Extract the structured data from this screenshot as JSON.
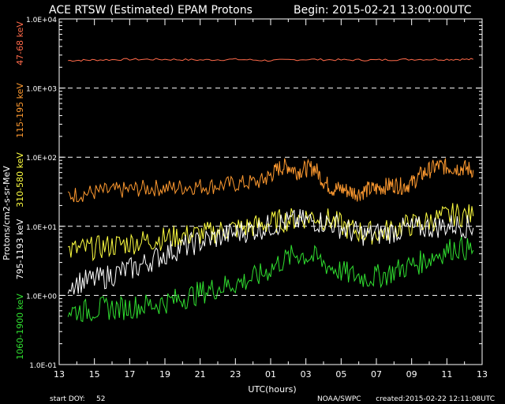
{
  "chart_data": {
    "type": "line",
    "title": "ACE RTSW (Estimated) EPAM Protons",
    "begin": "Begin: 2015-02-21 13:00:00UTC",
    "ylabel": "Protons/cm2-s-sr-MeV",
    "xlabel": "UTC(hours)",
    "yscale": "log",
    "ylim": [
      0.1,
      10000
    ],
    "xlim": [
      13,
      37
    ],
    "grid": "dashed horizontal at decades",
    "y_ticks": [
      "1.0E-01",
      "1.0E+00",
      "1.0E+01",
      "1.0E+02",
      "1.0E+03",
      "1.0E+04"
    ],
    "x_ticks": [
      "13",
      "15",
      "17",
      "19",
      "21",
      "23",
      "01",
      "03",
      "05",
      "07",
      "09",
      "11",
      "13"
    ],
    "series": [
      {
        "name": "47-68 keV",
        "color": "#ff6a4a",
        "x": [
          13.5,
          15,
          17,
          19,
          21,
          23,
          25,
          27,
          29,
          31,
          33,
          35,
          36.5
        ],
        "values": [
          2500,
          2550,
          2600,
          2600,
          2550,
          2600,
          2500,
          2600,
          2550,
          2550,
          2600,
          2600,
          2600
        ]
      },
      {
        "name": "115-195 keV",
        "color": "#ff9a30",
        "x": [
          13.5,
          14.5,
          15.5,
          16.5,
          17.5,
          18.5,
          19.5,
          20.5,
          21.5,
          22.5,
          23.5,
          24.5,
          25,
          25.5,
          26,
          26.5,
          27,
          27.5,
          28,
          28.5,
          29,
          29.5,
          30,
          30.5,
          31,
          31.5,
          32,
          32.5,
          33,
          33.5,
          34,
          34.5,
          35,
          35.5,
          36,
          36.5
        ],
        "values": [
          28,
          30,
          32,
          33,
          35,
          36,
          36,
          38,
          38,
          40,
          42,
          45,
          55,
          70,
          75,
          62,
          68,
          70,
          45,
          35,
          35,
          32,
          30,
          34,
          35,
          38,
          40,
          38,
          42,
          55,
          65,
          75,
          72,
          70,
          70,
          65
        ]
      },
      {
        "name": "310-580 keV",
        "color": "#ffff40",
        "x": [
          13.5,
          14.5,
          15.5,
          16.5,
          17.5,
          18.5,
          19.5,
          20.5,
          21.5,
          22.5,
          23.5,
          24.5,
          25.5,
          26.5,
          27.5,
          28.5,
          29.5,
          30.5,
          31.5,
          32.5,
          33.5,
          34.5,
          35.5,
          36.5
        ],
        "values": [
          4.5,
          4.7,
          5.0,
          5.5,
          6.0,
          6.5,
          7.0,
          7.5,
          8.0,
          9.0,
          9.5,
          10.5,
          12,
          13,
          14,
          12,
          9,
          8,
          8.5,
          10,
          11,
          13,
          15,
          14
        ]
      },
      {
        "name": "795-1193 keV",
        "color": "#ffffff",
        "x": [
          13.5,
          14.5,
          15.5,
          16.5,
          17.5,
          18.5,
          19.5,
          20.5,
          21.5,
          22.5,
          23.5,
          24.5,
          25.5,
          26.5,
          27.5,
          28.5,
          29.5,
          30.5,
          31.5,
          32.5,
          33.5,
          34.5,
          35.5,
          36.5
        ],
        "values": [
          1.5,
          1.6,
          1.8,
          2.2,
          2.6,
          3.5,
          4.5,
          5.5,
          6.5,
          7.5,
          8.5,
          9.5,
          11,
          12,
          12,
          11,
          8.5,
          7.5,
          8,
          9,
          9.5,
          10,
          10.5,
          9.5
        ]
      },
      {
        "name": "1060-1900 keV",
        "color": "#30e030",
        "x": [
          13.5,
          14.5,
          15.5,
          16.5,
          17.5,
          18.5,
          19.5,
          20.5,
          21.5,
          22.5,
          23.5,
          24.5,
          25.5,
          26.5,
          27.5,
          28.5,
          29.5,
          30.5,
          31.5,
          32.5,
          33.5,
          34.5,
          35.5,
          36.5
        ],
        "values": [
          0.6,
          0.6,
          0.65,
          0.65,
          0.7,
          0.75,
          0.85,
          1.0,
          1.2,
          1.4,
          1.6,
          2.0,
          3.0,
          4.0,
          3.5,
          2.5,
          2.0,
          1.8,
          2.0,
          2.5,
          3.0,
          4.0,
          5.0,
          4.5
        ]
      }
    ]
  },
  "footer": {
    "start_doy_label": "start DOY:",
    "start_doy_value": "52",
    "credit": "NOAA/SWPC",
    "created": "created:2015-02-22 12:11:08UTC"
  }
}
